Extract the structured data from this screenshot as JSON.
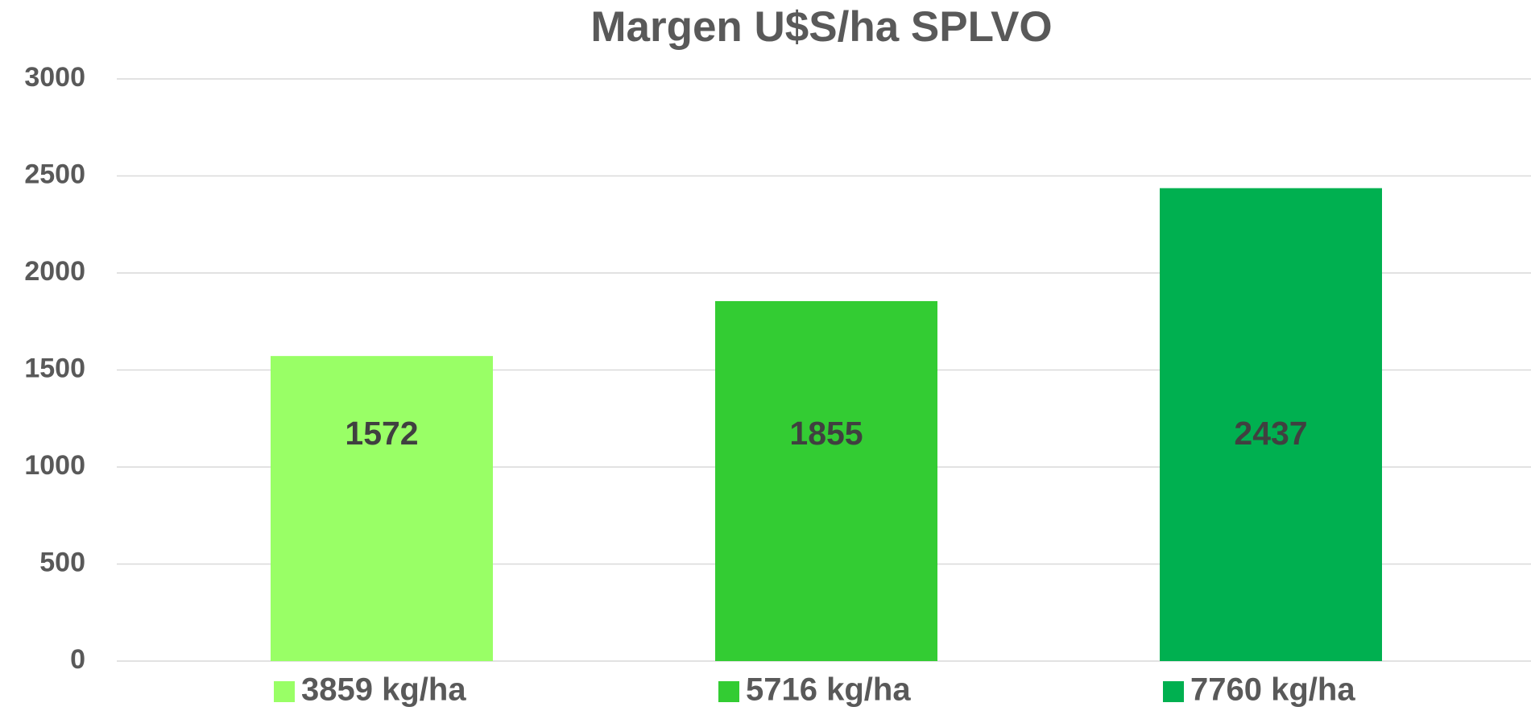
{
  "chart_data": {
    "type": "bar",
    "title": "Margen U$S/ha SPLVO",
    "series": [
      {
        "name": "3859 kg/ha",
        "color": "#99ff66",
        "values": [
          1572
        ]
      },
      {
        "name": "5716 kg/ha",
        "color": "#33cc33",
        "values": [
          1855
        ]
      },
      {
        "name": "7760 kg/ha",
        "color": "#00b050",
        "values": [
          2437
        ]
      }
    ],
    "ylim": [
      0,
      3000
    ],
    "yticks": [
      0,
      500,
      1000,
      1500,
      2000,
      2500,
      3000
    ],
    "grid": true,
    "legend": "bottom"
  }
}
